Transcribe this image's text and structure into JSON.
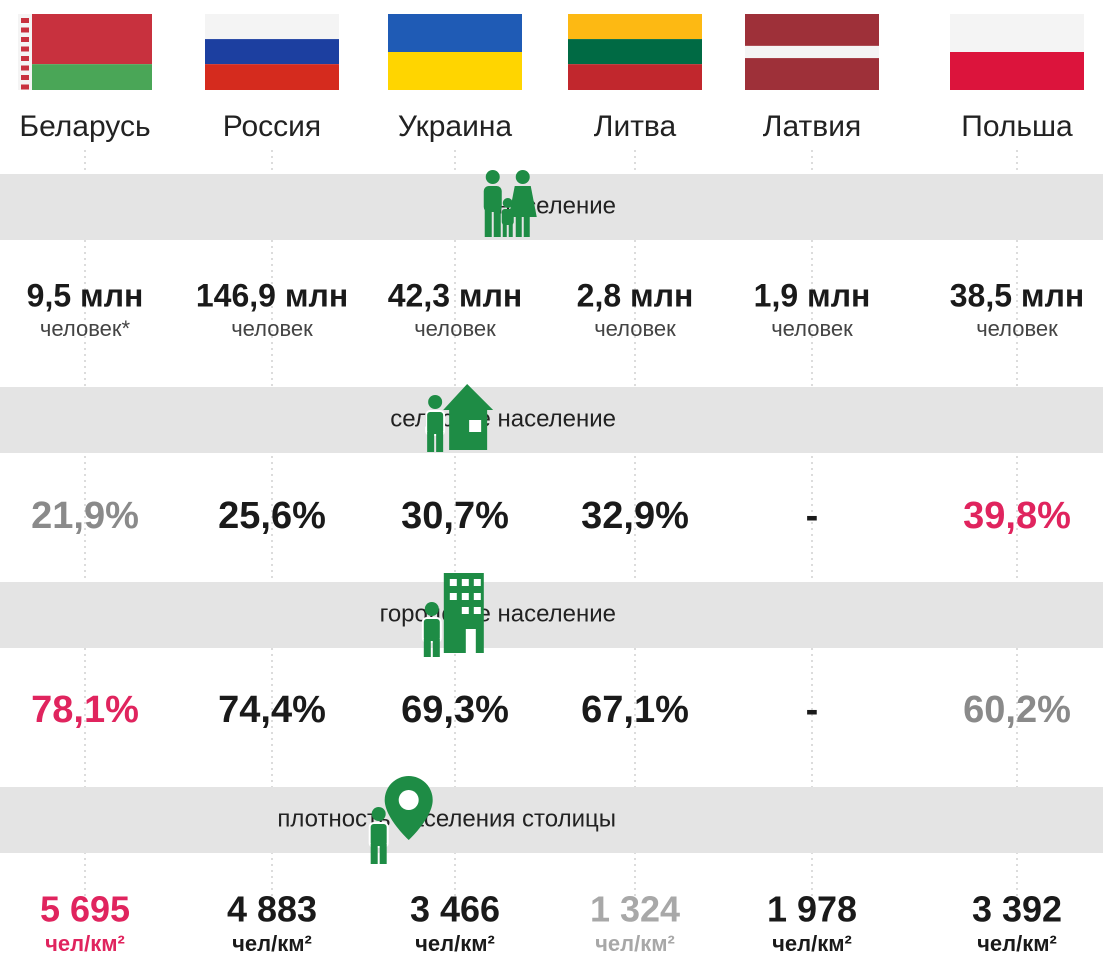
{
  "countries": [
    "Беларусь",
    "Россия",
    "Украина",
    "Литва",
    "Латвия",
    "Польша"
  ],
  "sections": [
    {
      "title": "население",
      "values": [
        "9,5 млн",
        "146,9 млн",
        "42,3 млн",
        "2,8 млн",
        "1,9 млн",
        "38,5 млн"
      ],
      "units": [
        "человек*",
        "человек",
        "человек",
        "человек",
        "человек",
        "человек"
      ],
      "colors": [
        "#1a1a1a",
        "#1a1a1a",
        "#1a1a1a",
        "#1a1a1a",
        "#1a1a1a",
        "#1a1a1a"
      ]
    },
    {
      "title": "сельское население",
      "values": [
        "21,9%",
        "25,6%",
        "30,7%",
        "32,9%",
        "-",
        "39,8%"
      ],
      "colors": [
        "#8a8a8a",
        "#1a1a1a",
        "#1a1a1a",
        "#1a1a1a",
        "#1a1a1a",
        "#e0245e"
      ]
    },
    {
      "title": "городское население",
      "values": [
        "78,1%",
        "74,4%",
        "69,3%",
        "67,1%",
        "-",
        "60,2%"
      ],
      "colors": [
        "#e0245e",
        "#1a1a1a",
        "#1a1a1a",
        "#1a1a1a",
        "#1a1a1a",
        "#8a8a8a"
      ]
    },
    {
      "title": "плотность населения столицы",
      "values": [
        "5 695",
        "4 883",
        "3 466",
        "1 324",
        "1 978",
        "3 392"
      ],
      "units": [
        "чел/км²",
        "чел/км²",
        "чел/км²",
        "чел/км²",
        "чел/км²",
        "чел/км²"
      ],
      "colors": [
        "#e0245e",
        "#1a1a1a",
        "#1a1a1a",
        "#a8a8a8",
        "#1a1a1a",
        "#1a1a1a"
      ]
    }
  ]
}
